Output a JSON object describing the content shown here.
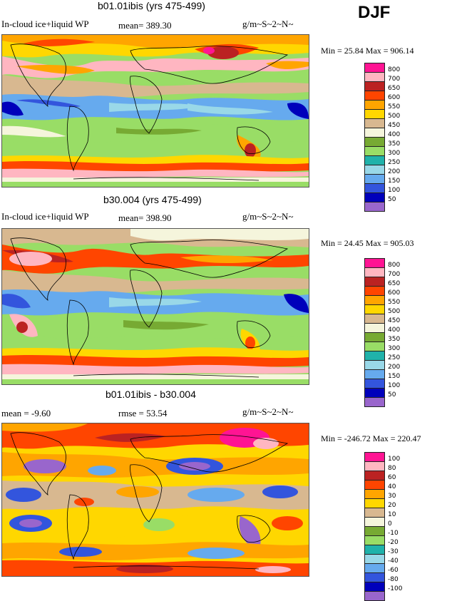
{
  "season": "DJF",
  "colors": [
    "#9966cc",
    "#0000bb",
    "#3355dd",
    "#66aaee",
    "#99d8e8",
    "#20b2aa",
    "#99dd66",
    "#77aa33",
    "#f5f5dc",
    "#d8b890",
    "#ffd700",
    "#ffa500",
    "#ff4500",
    "#bb2222",
    "#ffb6c1",
    "#ff1493"
  ],
  "panels": [
    {
      "title": "b01.01ibis (yrs 475-499)",
      "variable": "In-cloud ice+liquid WP",
      "mean": "mean= 389.30",
      "rmse": "",
      "units": "g/m~S~2~N~",
      "min_max": "Min =  25.84 Max = 906.14",
      "legend_labels": [
        "800",
        "700",
        "650",
        "600",
        "550",
        "500",
        "450",
        "400",
        "350",
        "300",
        "250",
        "200",
        "150",
        "100",
        "50"
      ]
    },
    {
      "title": "b30.004 (yrs 475-499)",
      "variable": "In-cloud ice+liquid WP",
      "mean": "mean= 398.90",
      "rmse": "",
      "units": "g/m~S~2~N~",
      "min_max": "Min =  24.45 Max = 905.03",
      "legend_labels": [
        "800",
        "700",
        "650",
        "600",
        "550",
        "500",
        "450",
        "400",
        "350",
        "300",
        "250",
        "200",
        "150",
        "100",
        "50"
      ]
    },
    {
      "title": "b01.01ibis - b30.004",
      "variable": "",
      "mean": "mean =  -9.60",
      "rmse": "rmse =  53.54",
      "units": "g/m~S~2~N~",
      "min_max": "Min = -246.72 Max = 220.47",
      "legend_labels": [
        "100",
        "80",
        "60",
        "40",
        "30",
        "20",
        "10",
        "0",
        "-10",
        "-20",
        "-30",
        "-40",
        "-60",
        "-80",
        "-100"
      ]
    }
  ]
}
